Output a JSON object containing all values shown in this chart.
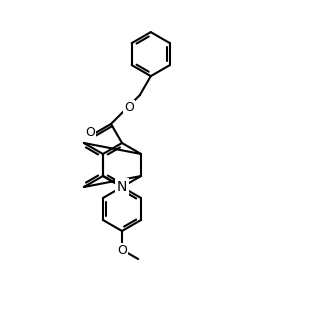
{
  "figsize": [
    3.2,
    3.32
  ],
  "dpi": 100,
  "background_color": "#ffffff",
  "line_color": "#000000",
  "lw": 1.5,
  "font_size": 9,
  "xlim": [
    0,
    320
  ],
  "ylim": [
    0,
    332
  ]
}
